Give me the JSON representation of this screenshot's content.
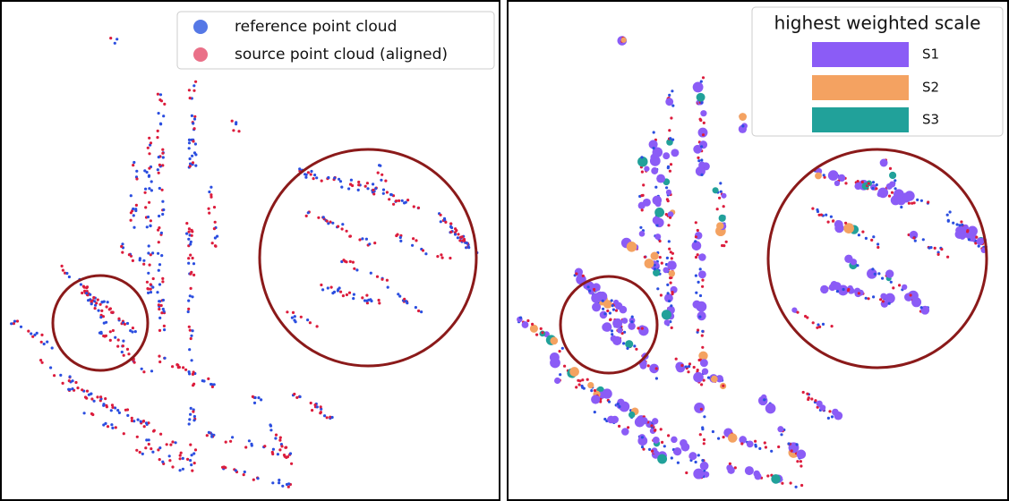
{
  "legend_left": {
    "items": [
      "reference point cloud",
      "source point cloud (aligned)"
    ]
  },
  "legend_right": {
    "title": "highest weighted scale",
    "items": [
      "S1",
      "S2",
      "S3"
    ]
  }
}
